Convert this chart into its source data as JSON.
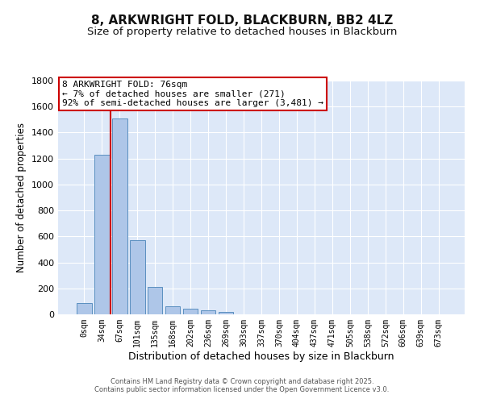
{
  "title1": "8, ARKWRIGHT FOLD, BLACKBURN, BB2 4LZ",
  "title2": "Size of property relative to detached houses in Blackburn",
  "xlabel": "Distribution of detached houses by size in Blackburn",
  "ylabel": "Number of detached properties",
  "bar_labels": [
    "0sqm",
    "34sqm",
    "67sqm",
    "101sqm",
    "135sqm",
    "168sqm",
    "202sqm",
    "236sqm",
    "269sqm",
    "303sqm",
    "337sqm",
    "370sqm",
    "404sqm",
    "437sqm",
    "471sqm",
    "505sqm",
    "538sqm",
    "572sqm",
    "606sqm",
    "639sqm",
    "673sqm"
  ],
  "bar_values": [
    90,
    1230,
    1510,
    570,
    210,
    65,
    45,
    30,
    20,
    0,
    0,
    0,
    0,
    0,
    0,
    0,
    0,
    0,
    0,
    0,
    0
  ],
  "bar_color": "#aec6e8",
  "bar_edge_color": "#5a8fc0",
  "vline_x_index": 2,
  "vline_color": "#cc0000",
  "annotation_title": "8 ARKWRIGHT FOLD: 76sqm",
  "annotation_line1": "← 7% of detached houses are smaller (271)",
  "annotation_line2": "92% of semi-detached houses are larger (3,481) →",
  "annotation_box_color": "#ffffff",
  "annotation_box_edge": "#cc0000",
  "ylim": [
    0,
    1800
  ],
  "yticks": [
    0,
    200,
    400,
    600,
    800,
    1000,
    1200,
    1400,
    1600,
    1800
  ],
  "bg_color": "#dde8f8",
  "footer1": "Contains HM Land Registry data © Crown copyright and database right 2025.",
  "footer2": "Contains public sector information licensed under the Open Government Licence v3.0.",
  "title1_fontsize": 11,
  "title2_fontsize": 9.5
}
